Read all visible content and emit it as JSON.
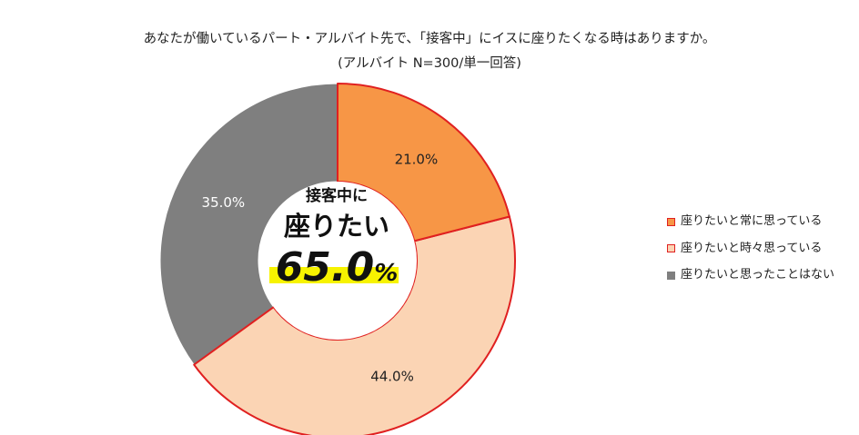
{
  "title": "あなたが働いているパート・アルバイト先で、「接客中」にイスに座りたくなる時はありますか。",
  "subtitle": "(アルバイト N=300/単一回答)",
  "center": {
    "line1": "接客中に",
    "line2": "座りたい",
    "value": "65.0",
    "unit": "%"
  },
  "chart_data": {
    "type": "pie",
    "style": "donut",
    "categories": [
      "座りたいと常に思っている",
      "座りたいと時々思っている",
      "座りたいと思ったことはない"
    ],
    "values": [
      21.0,
      44.0,
      35.0
    ],
    "labels": [
      "21.0%",
      "44.0%",
      "35.0%"
    ],
    "colors": [
      "#f79646",
      "#fbd4b4",
      "#7f7f7f"
    ],
    "highlight_outline_color": "#e02020",
    "legend_position": "right"
  }
}
